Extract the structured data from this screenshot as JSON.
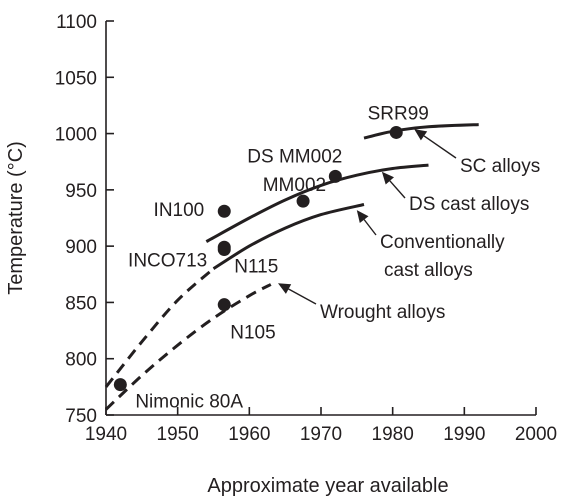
{
  "chart_data": {
    "type": "scatter",
    "title": "",
    "xlabel": "Approximate year available",
    "ylabel": "Temperature (°C)",
    "xlim": [
      1940,
      2000
    ],
    "ylim": [
      750,
      1100
    ],
    "xticks": [
      1940,
      1950,
      1960,
      1970,
      1980,
      1990,
      2000
    ],
    "yticks": [
      750,
      800,
      850,
      900,
      950,
      1000,
      1050,
      1100
    ],
    "grid": false,
    "points": [
      {
        "label": "Nimonic 80A",
        "x": 1942,
        "y": 777
      },
      {
        "label": "N105",
        "x": 1956.5,
        "y": 848
      },
      {
        "label": "N115",
        "x": 1956.5,
        "y": 897
      },
      {
        "label": "INCO713",
        "x": 1956.5,
        "y": 899
      },
      {
        "label": "IN100",
        "x": 1956.5,
        "y": 931
      },
      {
        "label": "MM002",
        "x": 1967.5,
        "y": 940
      },
      {
        "label": "DS MM002",
        "x": 1972,
        "y": 962
      },
      {
        "label": "SRR99",
        "x": 1980.5,
        "y": 1001
      }
    ],
    "series": [
      {
        "name": "Wrought alloys",
        "style": "dashed",
        "x": [
          1940,
          1945,
          1950,
          1955,
          1960,
          1963
        ],
        "y": [
          755,
          785,
          812,
          836,
          856,
          866
        ]
      },
      {
        "name": "Conventionally cast alloys",
        "style": "mixed",
        "solid_from_x": 1955,
        "x": [
          1940,
          1945,
          1950,
          1955,
          1960,
          1965,
          1970,
          1976
        ],
        "y": [
          775,
          815,
          852,
          880,
          900,
          916,
          928,
          937
        ]
      },
      {
        "name": "DS cast alloys",
        "style": "solid",
        "x": [
          1954,
          1960,
          1965,
          1970,
          1975,
          1980,
          1985
        ],
        "y": [
          904,
          925,
          941,
          954,
          963,
          969,
          972
        ]
      },
      {
        "name": "SC alloys",
        "style": "solid",
        "x": [
          1976,
          1980,
          1985,
          1992
        ],
        "y": [
          996,
          1002,
          1006,
          1008
        ]
      }
    ],
    "annotations": [
      {
        "text": "SC alloys",
        "arrow_to": {
          "x": 1983,
          "y": 1004
        }
      },
      {
        "text": "DS cast alloys",
        "arrow_to": {
          "x": 1978.5,
          "y": 966
        }
      },
      {
        "text": "Conventionally",
        "arrow_to": {
          "x": 1975,
          "y": 932
        }
      },
      {
        "text": "cast alloys"
      },
      {
        "text": "Wrought alloys",
        "arrow_to": {
          "x": 1964,
          "y": 867
        }
      }
    ]
  }
}
